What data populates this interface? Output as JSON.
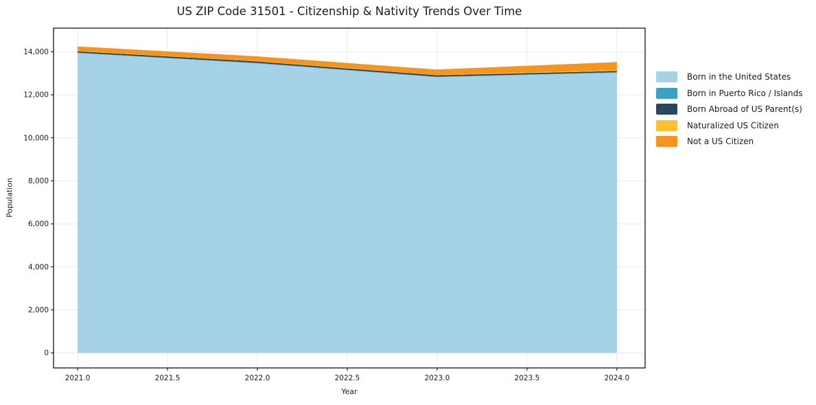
{
  "chart": {
    "title": "US ZIP Code 31501 - Citizenship & Nativity Trends Over Time",
    "xlabel": "Year",
    "ylabel": "Population"
  },
  "chart_data": {
    "type": "area",
    "stacked": true,
    "x": [
      2021,
      2022,
      2023,
      2024
    ],
    "series": [
      {
        "name": "Born in the United States",
        "key": "born-in-the-united-states",
        "color": "#a5d2e6",
        "values": [
          13940,
          13460,
          12820,
          13030
        ]
      },
      {
        "name": "Born in Puerto Rico / Islands",
        "key": "born-in-puerto-rico-islands",
        "color": "#3aa2c2",
        "values": [
          25,
          25,
          25,
          25
        ]
      },
      {
        "name": "Born Abroad of US Parent(s)",
        "key": "born-abroad-of-us-parents",
        "color": "#27485c",
        "values": [
          60,
          65,
          65,
          55
        ]
      },
      {
        "name": "Naturalized US Citizen",
        "key": "naturalized-us-citizen",
        "color": "#fcc22d",
        "values": [
          15,
          15,
          15,
          40
        ]
      },
      {
        "name": "Not a US Citizen",
        "key": "not-a-us-citizen",
        "color": "#f7941e",
        "values": [
          210,
          225,
          250,
          375
        ]
      }
    ],
    "totals": [
      14250,
      13790,
      13175,
      13525
    ],
    "xlim": [
      2020.866,
      2024.157
    ],
    "ylim": [
      -700,
      15100
    ],
    "xticks": {
      "values": [
        2021.0,
        2021.5,
        2022.0,
        2022.5,
        2023.0,
        2023.5,
        2024.0
      ],
      "labels": [
        "2021.0",
        "2021.5",
        "2022.0",
        "2022.5",
        "2023.0",
        "2023.5",
        "2024.0"
      ]
    },
    "yticks": {
      "values": [
        0,
        2000,
        4000,
        6000,
        8000,
        10000,
        12000,
        14000
      ],
      "labels": [
        "0",
        "2,000",
        "4,000",
        "6,000",
        "8,000",
        "10,000",
        "12,000",
        "14,000"
      ]
    },
    "grid": true,
    "legend_position": "right"
  },
  "colors": {
    "background": "#ffffff",
    "spine": "#000000",
    "grid": "#e9e9e9",
    "text": "#1a1a1a"
  }
}
